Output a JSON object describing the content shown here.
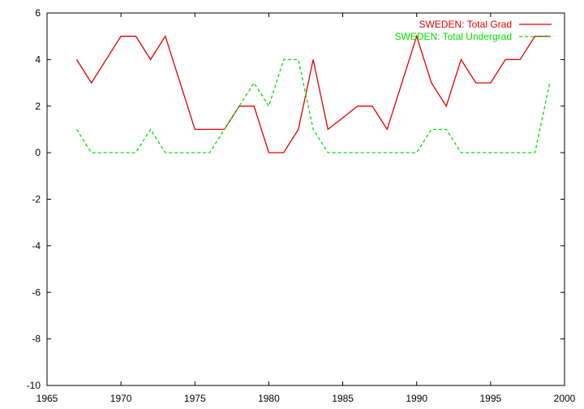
{
  "chart_data": {
    "type": "line",
    "title": "",
    "xlabel": "",
    "ylabel": "",
    "xlim": [
      1965,
      2000
    ],
    "ylim": [
      -10,
      6
    ],
    "xticks": [
      1965,
      1970,
      1975,
      1980,
      1985,
      1990,
      1995,
      2000
    ],
    "yticks": [
      -10,
      -8,
      -6,
      -4,
      -2,
      0,
      2,
      4,
      6
    ],
    "grid": false,
    "legend_position": "top-right",
    "x": [
      1967,
      1968,
      1969,
      1970,
      1971,
      1972,
      1973,
      1974,
      1975,
      1976,
      1977,
      1978,
      1979,
      1980,
      1981,
      1982,
      1983,
      1984,
      1985,
      1986,
      1987,
      1988,
      1989,
      1990,
      1991,
      1992,
      1993,
      1994,
      1995,
      1996,
      1997,
      1998,
      1999
    ],
    "series": [
      {
        "name": "SWEDEN: Total Grad",
        "color": "#e00000",
        "dash": "solid",
        "values": [
          4,
          3,
          4,
          5,
          5,
          4,
          5,
          3,
          1,
          1,
          1,
          2,
          2,
          0,
          0,
          1,
          4,
          1,
          1.5,
          2,
          2,
          1,
          3,
          5,
          3,
          2,
          4,
          3,
          3,
          4,
          4,
          5,
          5
        ]
      },
      {
        "name": "SWEDEN: Total Undergrad",
        "color": "#00e000",
        "dash": "dashed",
        "values": [
          1,
          0,
          0,
          0,
          0,
          1,
          0,
          0,
          0,
          0,
          1,
          2,
          3,
          2,
          4,
          4,
          1,
          0,
          0,
          0,
          0,
          0,
          0,
          0,
          1,
          1,
          0,
          0,
          0,
          0,
          0,
          0,
          3
        ]
      }
    ]
  }
}
